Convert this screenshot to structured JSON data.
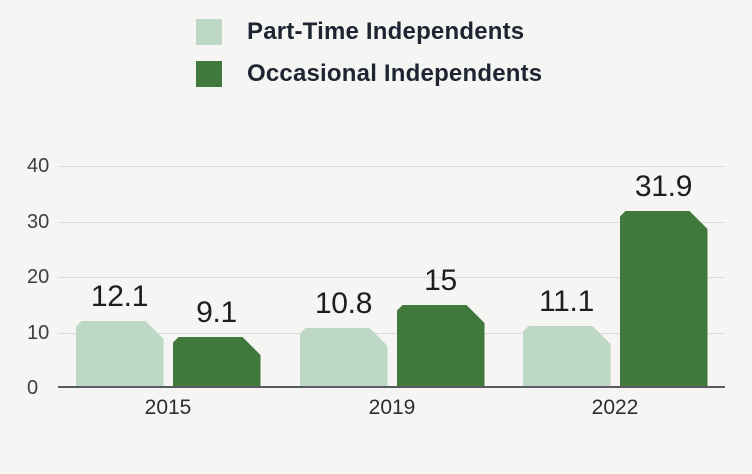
{
  "chart_data": {
    "type": "bar",
    "title": "",
    "categories": [
      "2015",
      "2019",
      "2022"
    ],
    "series": [
      {
        "name": "Part-Time Independents",
        "color": "#bdd8c5",
        "values": [
          12.1,
          10.8,
          11.1
        ]
      },
      {
        "name": "Occasional Independents",
        "color": "#41793d",
        "values": [
          9.1,
          15,
          31.9
        ]
      }
    ],
    "y_axis": {
      "min": 0,
      "max": 40,
      "ticks": [
        0,
        10,
        20,
        30,
        40
      ]
    },
    "grid": true,
    "legend_position": "top-left",
    "value_labels_shown": true
  },
  "colors": {
    "background": "#f5f5f3",
    "gridline": "#dcdcda",
    "axis_line": "#5b5c63",
    "value_label": "#1d1d1d",
    "tick_label": "#3e3e3e",
    "category_label": "#2e2e2e",
    "legend_text": "#1f2433"
  }
}
